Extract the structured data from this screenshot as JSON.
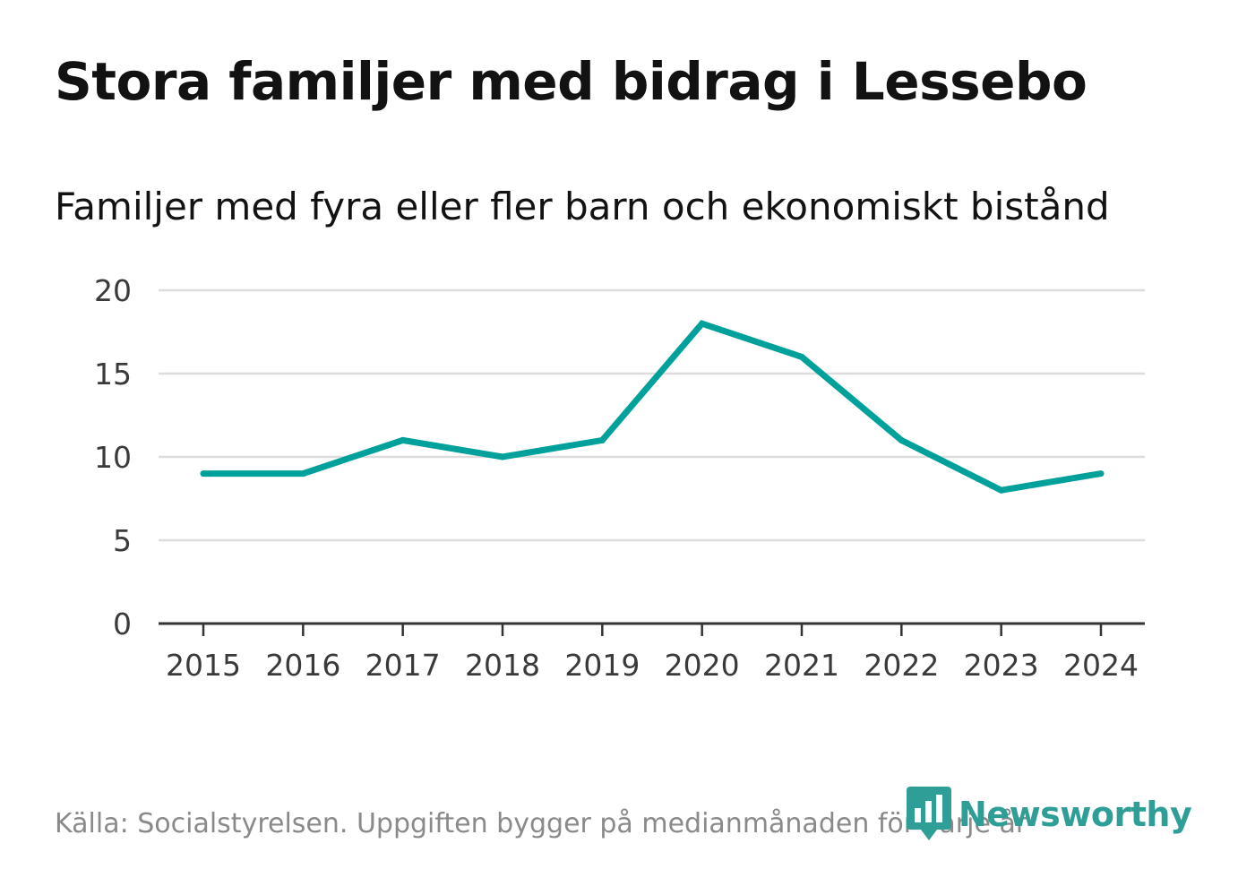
{
  "title": "Stora familjer med bidrag i Lessebo",
  "subtitle": "Familjer med fyra eller fler barn och ekonomiskt bistånd",
  "source": "Källa: Socialstyrelsen. Uppgiften bygger på medianmånaden för varje år",
  "logo_text": "Newsworthy",
  "colors": {
    "line": "#00a19a",
    "grid": "#dddddd",
    "axis": "#333333",
    "logo": "#2e9e97"
  },
  "chart_data": {
    "type": "line",
    "title": "Stora familjer med bidrag i Lessebo",
    "subtitle": "Familjer med fyra eller fler barn och ekonomiskt bistånd",
    "xlabel": "",
    "ylabel": "",
    "categories": [
      "2015",
      "2016",
      "2017",
      "2018",
      "2019",
      "2020",
      "2021",
      "2022",
      "2023",
      "2024"
    ],
    "series": [
      {
        "name": "Familjer med fyra eller fler barn och ekonomiskt bistånd",
        "values": [
          9,
          9,
          11,
          10,
          11,
          18,
          16,
          11,
          8,
          9
        ]
      }
    ],
    "ylim": [
      0,
      20
    ],
    "yticks": [
      0,
      5,
      10,
      15,
      20
    ],
    "grid": true,
    "legend": "none"
  }
}
